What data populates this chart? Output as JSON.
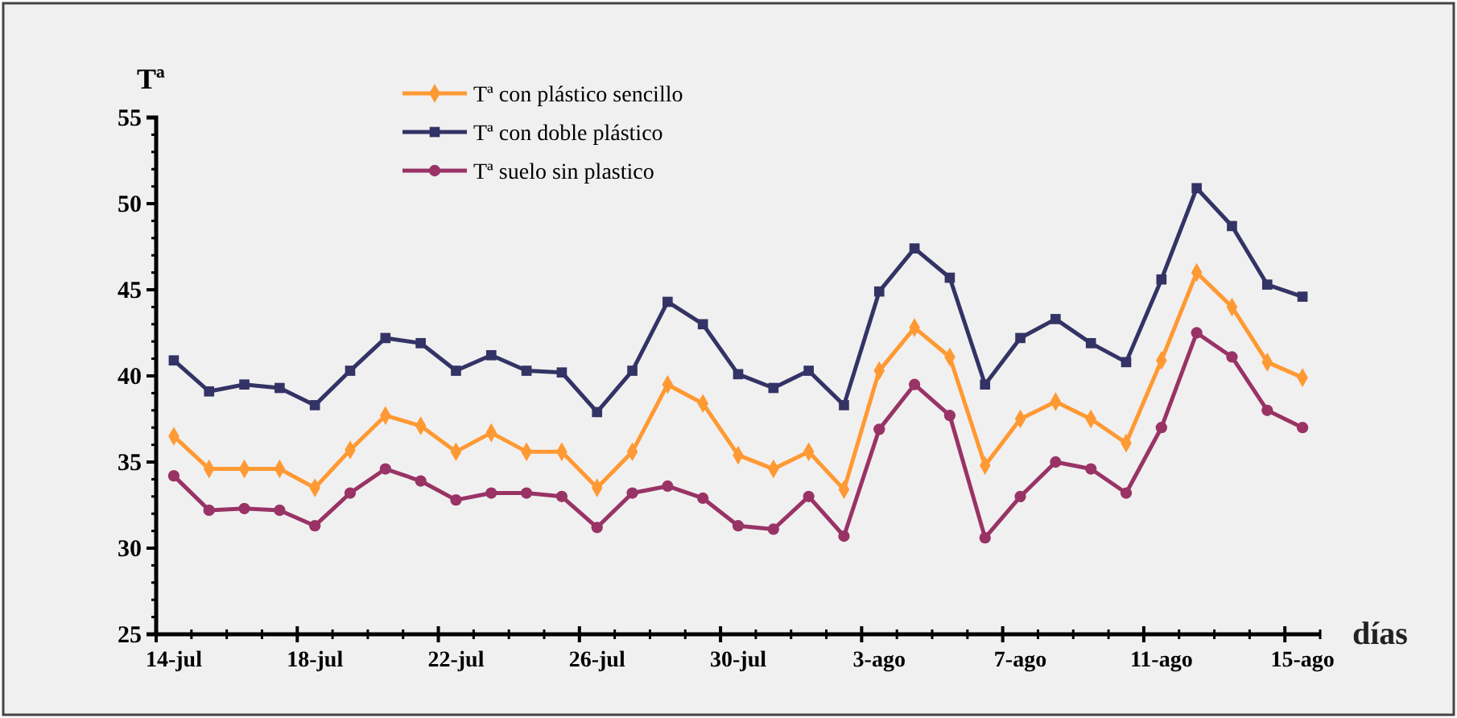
{
  "chart_data": {
    "type": "line",
    "ylabel": "Tª",
    "xlabel": "días",
    "categories": [
      "14-jul",
      null,
      null,
      null,
      "18-jul",
      null,
      null,
      null,
      "22-jul",
      null,
      null,
      null,
      "26-jul",
      null,
      null,
      null,
      "30-jul",
      null,
      null,
      null,
      "3-ago",
      null,
      null,
      null,
      "7-ago",
      null,
      null,
      null,
      "11-ago",
      null,
      null,
      null,
      "15-ago"
    ],
    "ylim": [
      25,
      55
    ],
    "yticks": [
      25,
      30,
      35,
      40,
      45,
      50,
      55
    ],
    "grid": false,
    "legend": "top",
    "line_style": "solid",
    "series": [
      {
        "name": "Tª con plástico sencillo",
        "color": "#ff9933",
        "marker": "diamond",
        "values": [
          36.5,
          34.6,
          34.6,
          34.6,
          33.5,
          35.7,
          37.7,
          37.1,
          35.6,
          36.7,
          35.6,
          35.6,
          33.5,
          35.6,
          39.5,
          38.4,
          35.4,
          34.6,
          35.6,
          33.4,
          40.3,
          42.8,
          41.1,
          34.8,
          37.5,
          38.5,
          37.5,
          36.1,
          40.9,
          46.0,
          44.0,
          40.8,
          39.9
        ]
      },
      {
        "name": "Tª con doble plástico",
        "color": "#333366",
        "marker": "square",
        "values": [
          40.9,
          39.1,
          39.5,
          39.3,
          38.3,
          40.3,
          42.2,
          41.9,
          40.3,
          41.2,
          40.3,
          40.2,
          37.9,
          40.3,
          44.3,
          43.0,
          40.1,
          39.3,
          40.3,
          38.3,
          44.9,
          47.4,
          45.7,
          39.5,
          42.2,
          43.3,
          41.9,
          40.8,
          45.6,
          50.9,
          48.7,
          45.3,
          44.6
        ]
      },
      {
        "name": "Tª suelo sin plastico",
        "color": "#993366",
        "marker": "circle",
        "values": [
          34.2,
          32.2,
          32.3,
          32.2,
          31.3,
          33.2,
          34.6,
          33.9,
          32.8,
          33.2,
          33.2,
          33.0,
          31.2,
          33.2,
          33.6,
          32.9,
          31.3,
          31.1,
          33.0,
          30.7,
          36.9,
          39.5,
          37.7,
          30.6,
          33.0,
          35.0,
          34.6,
          33.2,
          37.0,
          42.5,
          41.1,
          38.0,
          37.0
        ]
      }
    ]
  }
}
